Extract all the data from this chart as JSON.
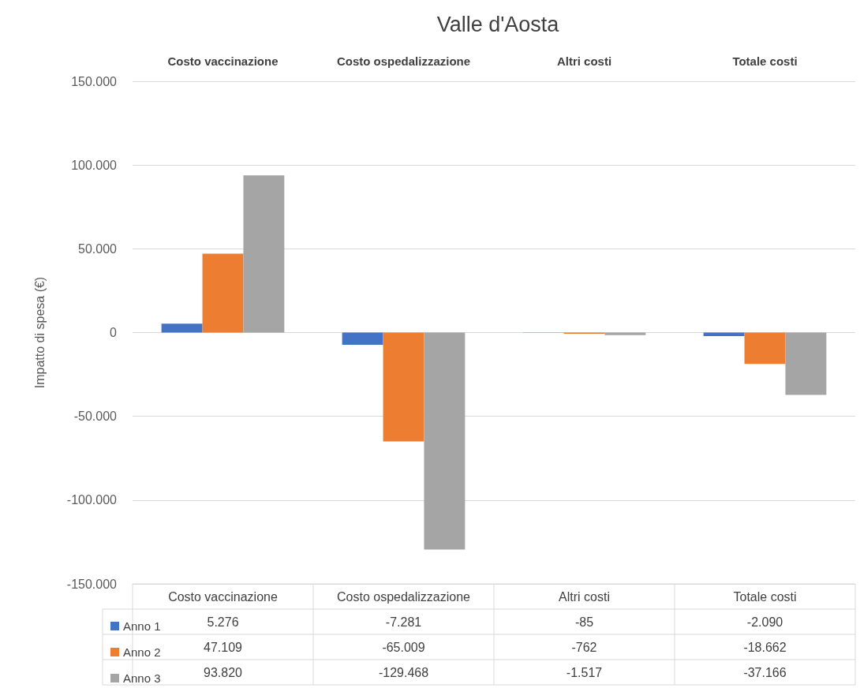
{
  "chart_data": {
    "type": "bar",
    "title": "Valle d'Aosta",
    "ylabel": "Impatto di spesa (€)",
    "categories": [
      "Costo vaccinazione",
      "Costo ospedalizzazione",
      "Altri costi",
      "Totale costi"
    ],
    "series": [
      {
        "name": "Anno 1",
        "color": "#4472c4",
        "values": [
          5276,
          -7281,
          -85,
          -2090
        ],
        "value_labels": [
          "5.276",
          "-7.281",
          "-85",
          "-2.090"
        ]
      },
      {
        "name": "Anno 2",
        "color": "#ed7d31",
        "values": [
          47109,
          -65009,
          -762,
          -18662
        ],
        "value_labels": [
          "47.109",
          "-65.009",
          "-762",
          "-18.662"
        ]
      },
      {
        "name": "Anno 3",
        "color": "#a5a5a5",
        "values": [
          93820,
          -129468,
          -1517,
          -37166
        ],
        "value_labels": [
          "93.820",
          "-129.468",
          "-1.517",
          "-37.166"
        ]
      }
    ],
    "ylim": [
      -150000,
      150000
    ],
    "yticks": [
      {
        "value": -150000,
        "label": "-150.000"
      },
      {
        "value": -100000,
        "label": "-100.000"
      },
      {
        "value": -50000,
        "label": "-50.000"
      },
      {
        "value": 0,
        "label": "0"
      },
      {
        "value": 50000,
        "label": "50.000"
      },
      {
        "value": 100000,
        "label": "100.000"
      },
      {
        "value": 150000,
        "label": "150.000"
      }
    ],
    "grid": true,
    "legend": "bottom left"
  }
}
